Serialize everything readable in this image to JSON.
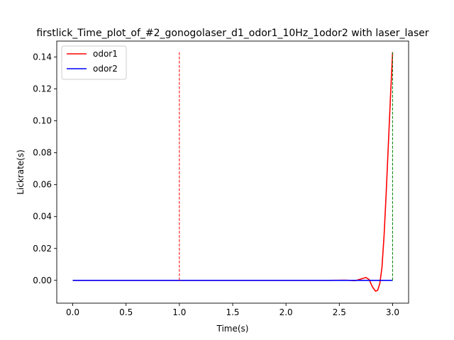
{
  "chart_data": {
    "type": "line",
    "title": "firstlick_Time_plot_of_#2_gonogolaser_d1_odor1_10Hz_1odor2 with laser_laser",
    "xlabel": "Time(s)",
    "ylabel": "Lickrate(s)",
    "xlim": [
      -0.15,
      3.15
    ],
    "ylim": [
      -0.0143,
      0.15
    ],
    "xticks": [
      0.0,
      0.5,
      1.0,
      1.5,
      2.0,
      2.5,
      3.0
    ],
    "xtick_labels": [
      "0.0",
      "0.5",
      "1.0",
      "1.5",
      "2.0",
      "2.5",
      "3.0"
    ],
    "yticks": [
      0.0,
      0.02,
      0.04,
      0.06,
      0.08,
      0.1,
      0.12,
      0.14
    ],
    "ytick_labels": [
      "0.00",
      "0.02",
      "0.04",
      "0.06",
      "0.08",
      "0.10",
      "0.12",
      "0.14"
    ],
    "grid": false,
    "legend_position": "upper-left",
    "series": [
      {
        "name": "odor1",
        "color": "#ff0000",
        "x": [
          0.0,
          0.5,
          1.0,
          1.5,
          2.0,
          2.4,
          2.55,
          2.6,
          2.65,
          2.7,
          2.75,
          2.78,
          2.81,
          2.84,
          2.86,
          2.88,
          2.9,
          2.92,
          2.94,
          2.96,
          2.98,
          3.0
        ],
        "y": [
          0.0,
          0.0,
          0.0,
          0.0,
          0.0,
          0.0,
          0.0001,
          0.0,
          -0.0002,
          0.0008,
          0.0018,
          0.0005,
          -0.004,
          -0.0068,
          -0.0062,
          -0.002,
          0.008,
          0.028,
          0.055,
          0.085,
          0.115,
          0.143
        ]
      },
      {
        "name": "odor2",
        "color": "#0000ff",
        "x": [
          0.0,
          3.0
        ],
        "y": [
          0.0,
          0.0
        ]
      }
    ],
    "vlines": [
      {
        "x": 1.0,
        "y0": 0.0,
        "y1": 0.143,
        "color": "#ff0000",
        "style": "dashed"
      },
      {
        "x": 3.0,
        "y0": 0.0,
        "y1": 0.143,
        "color": "#008000",
        "style": "dashed"
      }
    ]
  }
}
